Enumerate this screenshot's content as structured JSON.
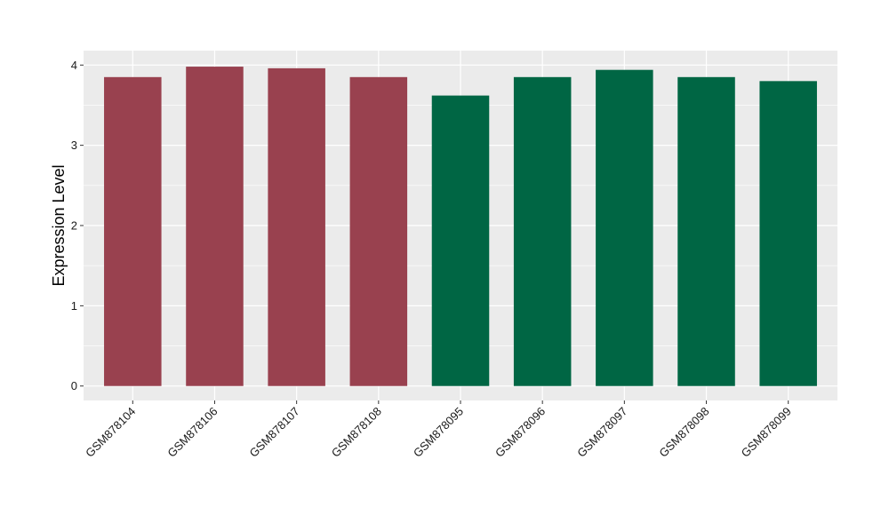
{
  "chart_data": {
    "type": "bar",
    "ylabel": "Expression Level",
    "xlabel": "",
    "categories": [
      "GSM878104",
      "GSM878106",
      "GSM878107",
      "GSM878108",
      "GSM878095",
      "GSM878096",
      "GSM878097",
      "GSM878098",
      "GSM878099"
    ],
    "values": [
      3.85,
      3.98,
      3.96,
      3.85,
      3.62,
      3.85,
      3.94,
      3.85,
      3.8
    ],
    "bar_colors": [
      "#99414f",
      "#99414f",
      "#99414f",
      "#99414f",
      "#006644",
      "#006644",
      "#006644",
      "#006644",
      "#006644"
    ],
    "ylim": [
      -0.18,
      4.18
    ],
    "yticks": [
      0,
      1,
      2,
      3,
      4
    ],
    "grid": true,
    "panel_background": "#ebebeb",
    "gridline_color": "#ffffff"
  }
}
